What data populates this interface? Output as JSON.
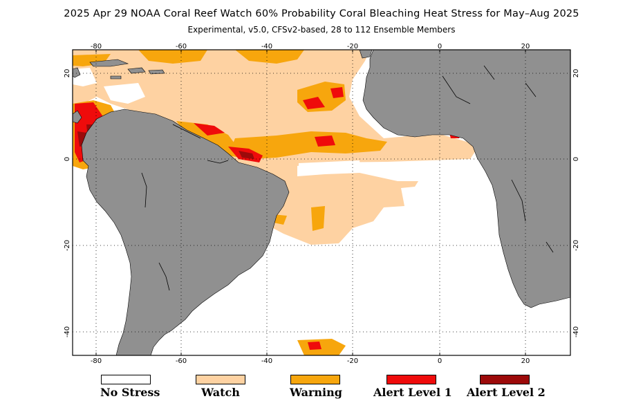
{
  "title": "2025 Apr 29 NOAA Coral Reef Watch 60% Probability Coral Bleaching Heat Stress for May–Aug 2025",
  "subtitle": "Experimental, v5.0, CFSv2-based, 28 to 112 Ensemble Members",
  "axes": {
    "lon_ticks": [
      "-80",
      "-60",
      "-40",
      "-20",
      "0",
      "20"
    ],
    "lat_ticks": [
      "20",
      "0",
      "-20",
      "-40"
    ]
  },
  "colors": {
    "no_stress": "#ffffff",
    "watch": "#fed2a2",
    "warning": "#f7a60d",
    "alert1": "#ef0b0b",
    "alert2": "#9c0a0a",
    "land": "#909090"
  },
  "legend": [
    {
      "label": "No Stress",
      "color": "#ffffff"
    },
    {
      "label": "Watch",
      "color": "#fed2a2"
    },
    {
      "label": "Warning",
      "color": "#f7a60d"
    },
    {
      "label": "Alert Level 1",
      "color": "#ef0b0b"
    },
    {
      "label": "Alert Level 2",
      "color": "#9c0a0a"
    }
  ]
}
